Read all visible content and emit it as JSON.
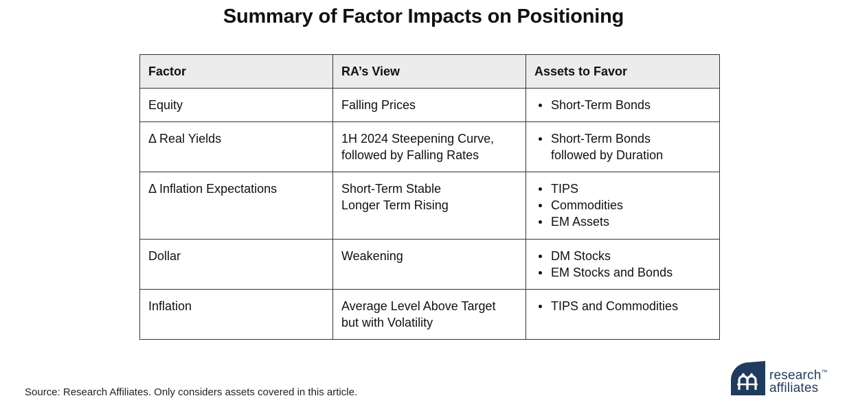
{
  "title": "Summary of Factor Impacts on Positioning",
  "table": {
    "headers": [
      "Factor",
      "RA’s View",
      "Assets to Favor"
    ],
    "rows": [
      {
        "factor": "Equity",
        "view": [
          "Falling Prices"
        ],
        "assets": [
          [
            "Short-Term Bonds"
          ]
        ]
      },
      {
        "factor": "Δ Real Yields",
        "view": [
          "1H 2024 Steepening Curve,",
          "followed by Falling Rates"
        ],
        "assets": [
          [
            "Short-Term Bonds",
            "followed by Duration"
          ]
        ]
      },
      {
        "factor": "Δ Inflation Expectations",
        "view": [
          "Short-Term Stable",
          "Longer Term Rising"
        ],
        "assets": [
          [
            "TIPS"
          ],
          [
            "Commodities"
          ],
          [
            "EM Assets"
          ]
        ]
      },
      {
        "factor": "Dollar",
        "view": [
          "Weakening"
        ],
        "assets": [
          [
            "DM Stocks"
          ],
          [
            "EM Stocks and Bonds"
          ]
        ]
      },
      {
        "factor": "Inflation",
        "view": [
          "Average Level Above Target",
          "but with Volatility"
        ],
        "assets": [
          [
            "TIPS and Commodities"
          ]
        ]
      }
    ]
  },
  "source": "Source: Research Affiliates. Only considers assets covered in this article.",
  "logo": {
    "line1": "research",
    "tm": "™",
    "line2": "affiliates",
    "color": "#1f3b5e"
  }
}
